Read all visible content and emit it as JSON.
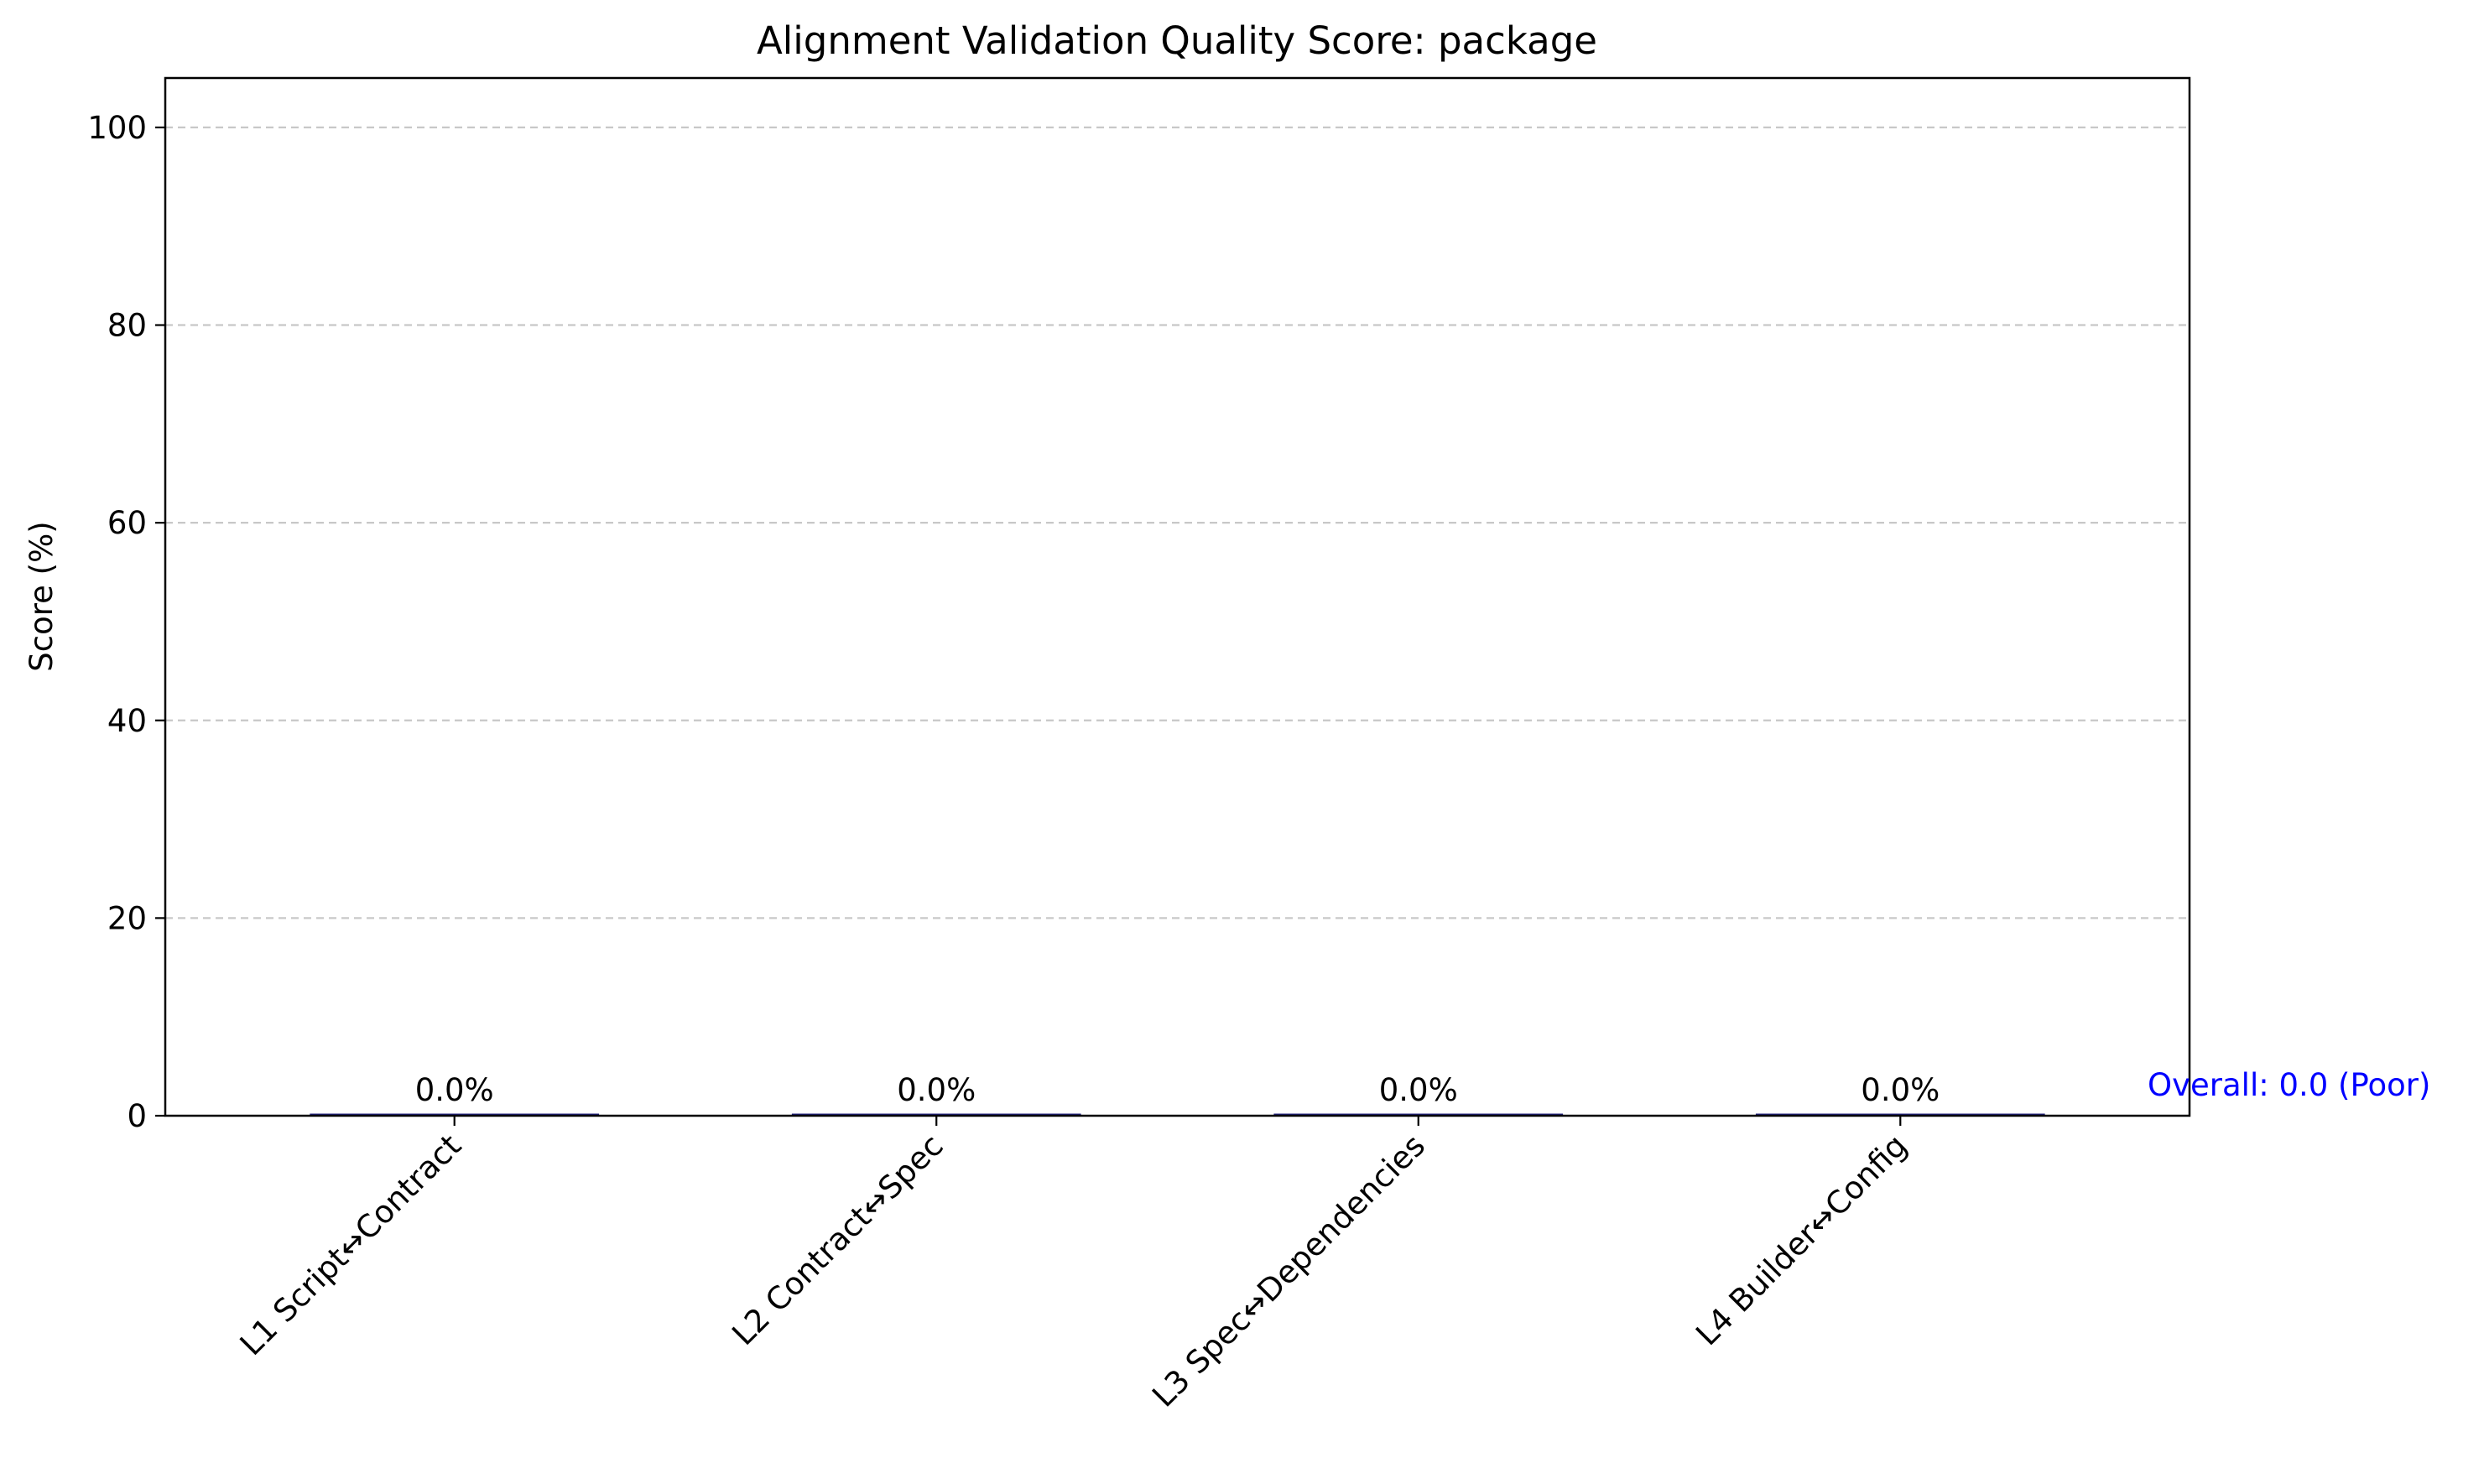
{
  "chart_data": {
    "type": "bar",
    "title": "Alignment Validation Quality Score: package",
    "xlabel": "",
    "ylabel": "Score (%)",
    "ylim": [
      0,
      105
    ],
    "yticks": [
      0,
      20,
      40,
      60,
      80,
      100
    ],
    "ytick_labels": [
      "0",
      "20",
      "40",
      "60",
      "80",
      "100"
    ],
    "categories": [
      "L1 Script↔Contract",
      "L2 Contract↔Spec",
      "L3 Spec↔Dependencies",
      "L4 Builder↔Config"
    ],
    "values": [
      0.0,
      0.0,
      0.0,
      0.0
    ],
    "value_labels": [
      "0.0%",
      "0.0%",
      "0.0%",
      "0.0%"
    ],
    "grid": "y-dashed",
    "bar_color": "#1f1f7a",
    "overall_label": "Overall: 0.0 (Poor)",
    "overall_color": "#0000ff",
    "grid_color": "#c8c8c8"
  }
}
